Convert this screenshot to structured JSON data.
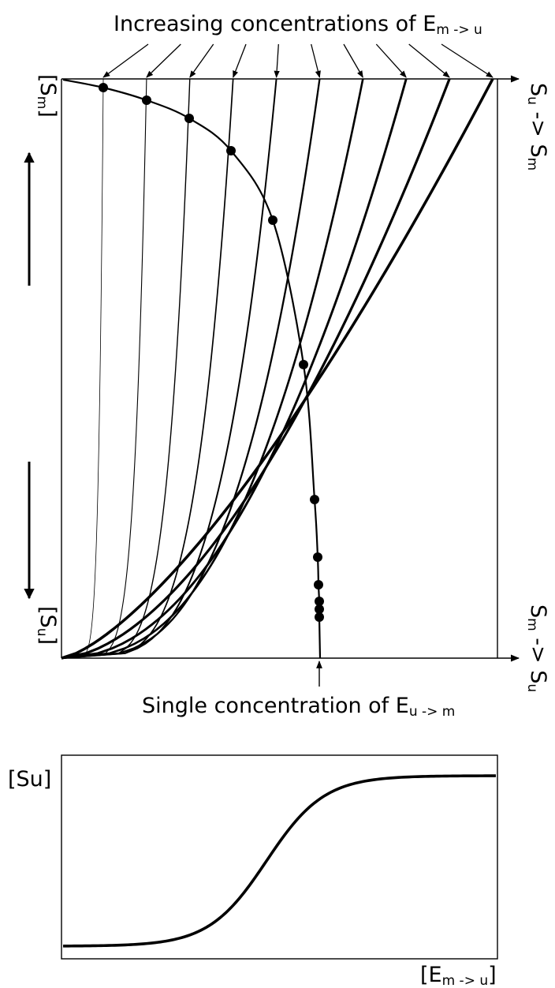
{
  "top_diagram": {
    "top_caption": {
      "text": "Increasing concentrations of E",
      "subscript": "m -> u"
    },
    "bottom_caption": {
      "text": "Single concentration of E",
      "subscript": "u -> m"
    },
    "right_top_label": {
      "a": "S",
      "a_sub": "u",
      "arrow": " -> ",
      "b": "S",
      "b_sub": "m"
    },
    "right_bottom_label": {
      "a": "S",
      "a_sub": "m",
      "arrow": " -> ",
      "b": "S",
      "b_sub": "u"
    },
    "left_top_label": {
      "text": "[S",
      "subscript": "m",
      "close": "]"
    },
    "left_bottom_label": {
      "text": "[S",
      "subscript": "u",
      "close": "]"
    },
    "curve_count": 10,
    "intersection_count": 10
  },
  "bottom_chart": {
    "ylabel": "[Su]",
    "xlabel": {
      "text": "[E",
      "subscript": "m -> u",
      "close": "]"
    },
    "shape": "sigmoid",
    "y_low": 0,
    "y_high": 1
  }
}
